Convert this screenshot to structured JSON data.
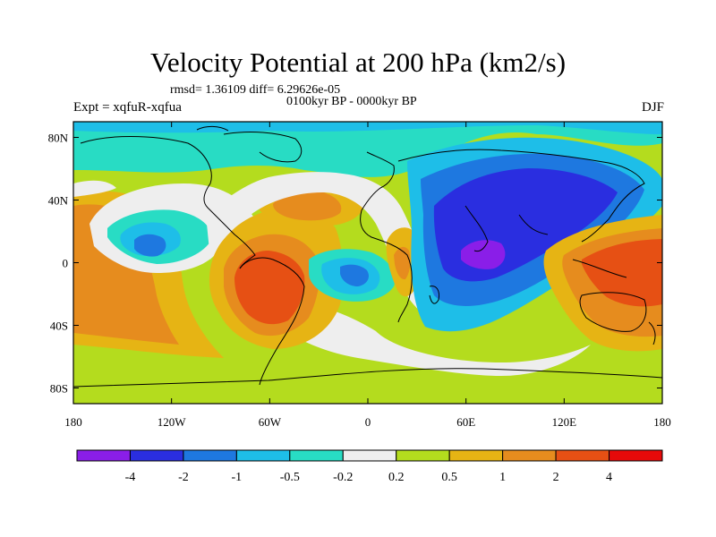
{
  "title": "Velocity Potential at 200 hPa (km2/s)",
  "stats": "rmsd= 1.36109 diff= 6.29626e-05",
  "period": "0100kyr BP - 0000kyr BP",
  "expt": "Expt = xqfuR-xqfua",
  "season": "DJF",
  "map": {
    "lon_ticks": [
      "180",
      "120W",
      "60W",
      "0",
      "60E",
      "120E",
      "180"
    ],
    "lat_ticks": [
      "80N",
      "40N",
      "0",
      "40S",
      "80S"
    ],
    "lon_values": [
      -180,
      -120,
      -60,
      0,
      60,
      120,
      180
    ],
    "lat_values": [
      80,
      40,
      0,
      -40,
      -80
    ]
  },
  "colorbar": {
    "labels": [
      "-4",
      "-2",
      "-1",
      "-0.5",
      "-0.2",
      "0.2",
      "0.5",
      "1",
      "2",
      "4"
    ],
    "colors": [
      "#8a1ee8",
      "#2a2ee0",
      "#1e78e0",
      "#1ebee8",
      "#28dcc4",
      "#eeeeee",
      "#b4dc1e",
      "#e6b414",
      "#e68c1e",
      "#e65014",
      "#e60a0a"
    ]
  }
}
